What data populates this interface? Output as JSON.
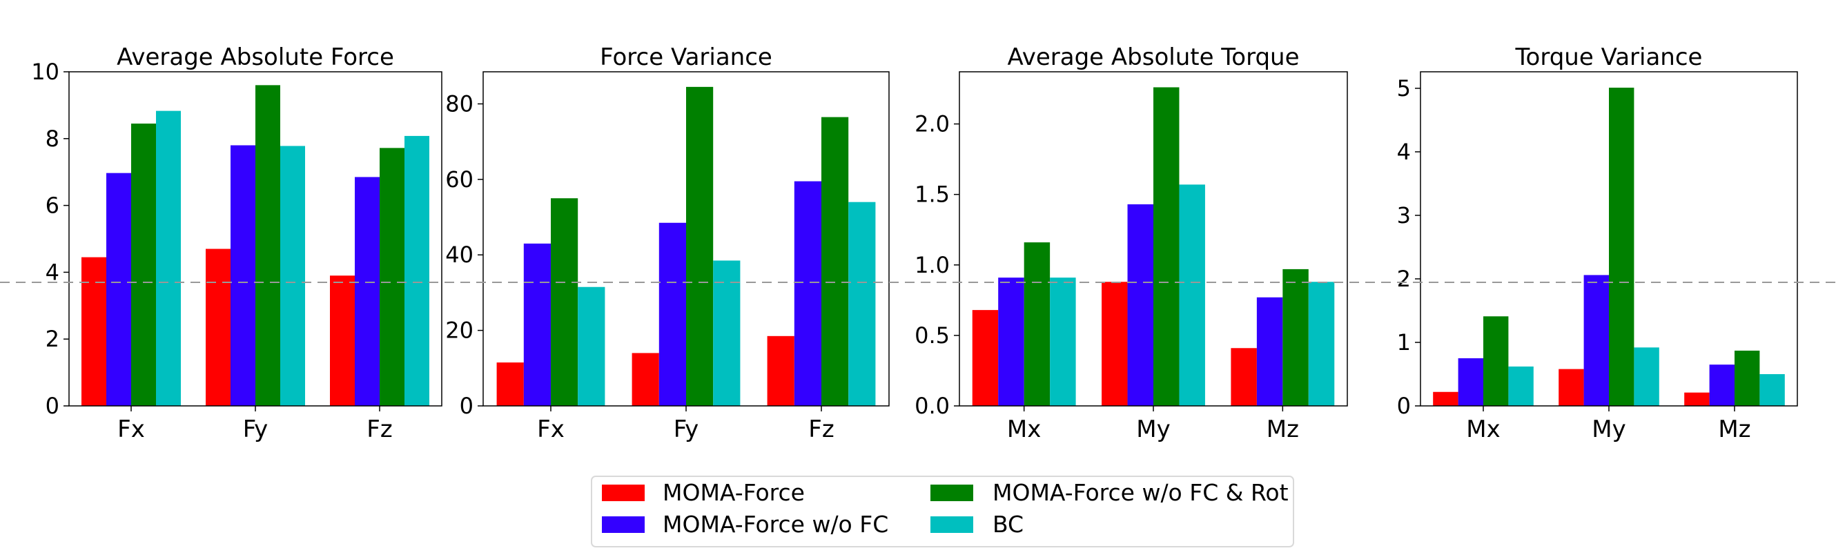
{
  "chart_data": [
    {
      "type": "bar",
      "title": "Average Absolute Force",
      "categories": [
        "Fx",
        "Fy",
        "Fz"
      ],
      "series": [
        {
          "name": "MOMA-Force",
          "values": [
            4.45,
            4.7,
            3.9
          ]
        },
        {
          "name": "MOMA-Force w/o FC",
          "values": [
            6.97,
            7.8,
            6.85
          ]
        },
        {
          "name": "MOMA-Force w/o FC & Rot",
          "values": [
            8.45,
            9.6,
            7.72
          ]
        },
        {
          "name": "BC",
          "values": [
            8.83,
            7.78,
            8.08
          ]
        }
      ],
      "ylim": [
        0,
        10
      ],
      "yticks": [
        "0",
        "2",
        "4",
        "6",
        "8",
        "10"
      ]
    },
    {
      "type": "bar",
      "title": "Force Variance",
      "categories": [
        "Fx",
        "Fy",
        "Fz"
      ],
      "series": [
        {
          "name": "MOMA-Force",
          "values": [
            11.5,
            14.0,
            18.5
          ]
        },
        {
          "name": "MOMA-Force w/o FC",
          "values": [
            43.0,
            48.5,
            59.5
          ]
        },
        {
          "name": "MOMA-Force w/o FC & Rot",
          "values": [
            55.0,
            84.5,
            76.5
          ]
        },
        {
          "name": "BC",
          "values": [
            31.5,
            38.5,
            54.0
          ]
        }
      ],
      "ylim": [
        0,
        88.5
      ],
      "yticks": [
        "0",
        "20",
        "40",
        "60",
        "80"
      ]
    },
    {
      "type": "bar",
      "title": "Average Absolute Torque",
      "categories": [
        "Mx",
        "My",
        "Mz"
      ],
      "series": [
        {
          "name": "MOMA-Force",
          "values": [
            0.68,
            0.88,
            0.41
          ]
        },
        {
          "name": "MOMA-Force w/o FC",
          "values": [
            0.91,
            1.43,
            0.77
          ]
        },
        {
          "name": "MOMA-Force w/o FC & Rot",
          "values": [
            1.16,
            2.26,
            0.97
          ]
        },
        {
          "name": "BC",
          "values": [
            0.91,
            1.57,
            0.88
          ]
        }
      ],
      "ylim": [
        0,
        2.37
      ],
      "yticks": [
        "0.0",
        "0.5",
        "1.0",
        "1.5",
        "2.0"
      ]
    },
    {
      "type": "bar",
      "title": "Torque Variance",
      "categories": [
        "Mx",
        "My",
        "Mz"
      ],
      "series": [
        {
          "name": "MOMA-Force",
          "values": [
            0.22,
            0.58,
            0.21
          ]
        },
        {
          "name": "MOMA-Force w/o FC",
          "values": [
            0.75,
            2.06,
            0.65
          ]
        },
        {
          "name": "MOMA-Force w/o FC & Rot",
          "values": [
            1.41,
            5.01,
            0.87
          ]
        },
        {
          "name": "BC",
          "values": [
            0.62,
            0.92,
            0.5
          ]
        }
      ],
      "ylim": [
        0,
        5.26
      ],
      "yticks": [
        "0",
        "1",
        "2",
        "3",
        "4",
        "5"
      ]
    }
  ],
  "legend": {
    "placement": "bottom-center",
    "items": [
      {
        "label": "MOMA-Force",
        "color": "#ff0000"
      },
      {
        "label": "MOMA-Force w/o FC",
        "color": "#3300ff"
      },
      {
        "label": "MOMA-Force w/o FC & Rot",
        "color": "#008000"
      },
      {
        "label": "BC",
        "color": "#00bfbf"
      }
    ]
  },
  "reference_line": {
    "style": "dashed",
    "color": "#999999"
  }
}
